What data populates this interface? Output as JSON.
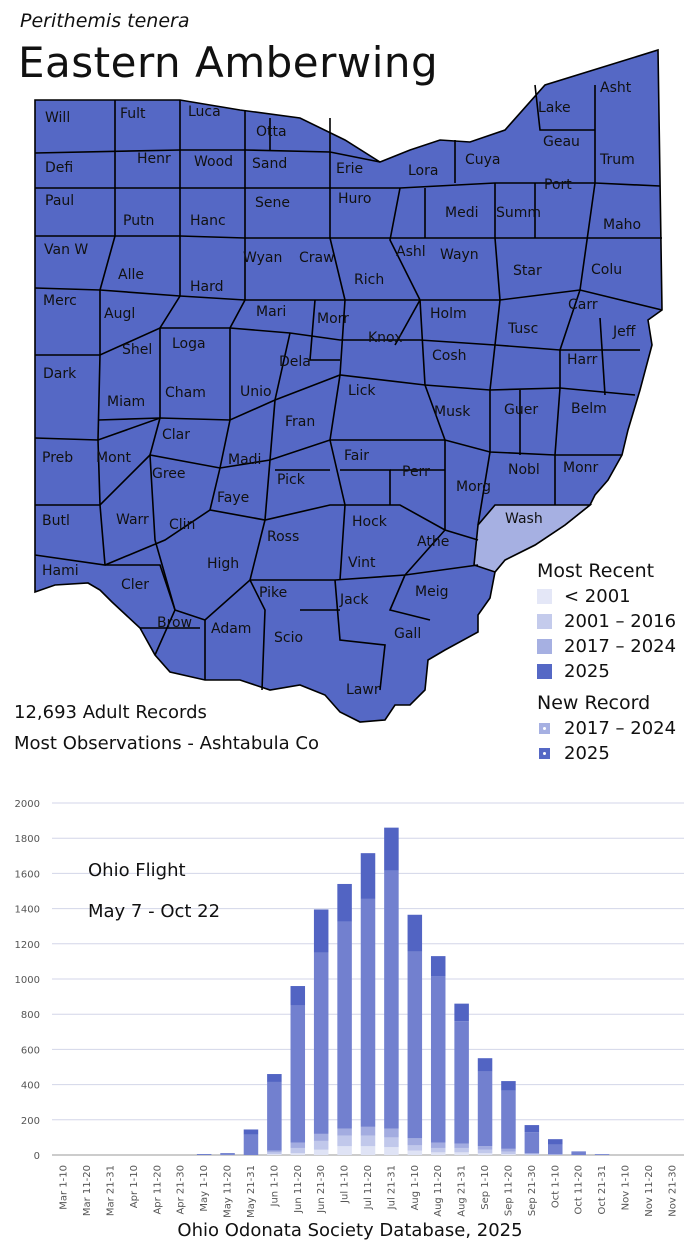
{
  "species": {
    "scientific_name": "Perithemis tenera",
    "common_name": "Eastern Amberwing"
  },
  "map": {
    "counties": [
      "Will",
      "Fult",
      "Luca",
      "Otta",
      "Lake",
      "Asht",
      "Defi",
      "Henr",
      "Wood",
      "Sand",
      "Erie",
      "Lora",
      "Cuya",
      "Geau",
      "Trum",
      "Paul",
      "Putn",
      "Hanc",
      "Sene",
      "Huro",
      "Medi",
      "Summ",
      "Port",
      "Maho",
      "Van W",
      "Alle",
      "Wyan",
      "Craw",
      "Rich",
      "Ashl",
      "Wayn",
      "Star",
      "Colu",
      "Merc",
      "Augl",
      "Hard",
      "Mari",
      "Morr",
      "Holm",
      "Carr",
      "Shel",
      "Loga",
      "Knox",
      "Tusc",
      "Jeff",
      "Dela",
      "Cosh",
      "Harr",
      "Dark",
      "Cham",
      "Unio",
      "Lick",
      "Miam",
      "Fran",
      "Musk",
      "Guer",
      "Belm",
      "Clar",
      "Fair",
      "Madi",
      "Perr",
      "Nobl",
      "Monr",
      "Preb",
      "Mont",
      "Gree",
      "Pick",
      "Morg",
      "Wash",
      "Faye",
      "Hock",
      "Butl",
      "Warr",
      "Clin",
      "Ross",
      "Athe",
      "High",
      "Vint",
      "Hami",
      "Cler",
      "Pike",
      "Jack",
      "Meig",
      "Brow",
      "Adam",
      "Scio",
      "Gall",
      "Lawr"
    ],
    "most_recent_category": {
      "default": "2025",
      "Wash": "2017 – 2024"
    }
  },
  "legend": {
    "most_recent_title": "Most Recent",
    "most_recent_items": [
      {
        "label": "< 2001",
        "color": "#e4e7f7"
      },
      {
        "label": "2001 – 2016",
        "color": "#c4cbec"
      },
      {
        "label": "2017 – 2024",
        "color": "#a6b0e2"
      },
      {
        "label": "2025",
        "color": "#5568c5"
      }
    ],
    "new_record_title": "New Record",
    "new_record_items": [
      {
        "label": "2017 – 2024",
        "color": "#a6b0e2"
      },
      {
        "label": "2025",
        "color": "#5568c5"
      }
    ]
  },
  "stats": {
    "records": "12,693 Adult Records",
    "most_observations": "Most Observations - Ashtabula Co"
  },
  "chart_data": {
    "type": "bar",
    "stacked": true,
    "annotation_title": "Ohio Flight",
    "annotation_range": "May 7 - Oct 22",
    "categories": [
      "Mar 1-10",
      "Mar 11-20",
      "Mar 21-31",
      "Apr 1-10",
      "Apr 11-20",
      "Apr 21-30",
      "May 1-10",
      "May 11-20",
      "May 21-31",
      "Jun 1-10",
      "Jun 11-20",
      "Jun 21-30",
      "Jul 1-10",
      "Jul 11-20",
      "Jul 21-31",
      "Aug 1-10",
      "Aug 11-20",
      "Aug 21-31",
      "Sep 1-10",
      "Sep 11-20",
      "Sep 21-30",
      "Oct 1-10",
      "Oct 11-20",
      "Oct 21-31",
      "Nov 1-10",
      "Nov 11-20",
      "Nov 21-30"
    ],
    "series": [
      {
        "color": "#dfe3f5",
        "values": [
          0,
          0,
          0,
          0,
          0,
          0,
          0,
          0,
          0,
          5,
          10,
          30,
          50,
          50,
          45,
          25,
          15,
          15,
          10,
          5,
          0,
          0,
          0,
          0,
          0,
          0,
          0
        ]
      },
      {
        "color": "#c1c8eb",
        "values": [
          0,
          0,
          0,
          0,
          0,
          0,
          0,
          0,
          0,
          10,
          30,
          50,
          60,
          60,
          55,
          30,
          25,
          25,
          20,
          15,
          5,
          0,
          0,
          0,
          0,
          0,
          0
        ]
      },
      {
        "color": "#a3ace0",
        "values": [
          0,
          0,
          0,
          0,
          0,
          0,
          0,
          0,
          0,
          10,
          30,
          40,
          40,
          50,
          50,
          40,
          30,
          25,
          20,
          15,
          5,
          5,
          0,
          0,
          0,
          0,
          0
        ]
      },
      {
        "color": "#7280cf",
        "values": [
          0,
          0,
          0,
          0,
          0,
          0,
          3,
          5,
          115,
          390,
          780,
          1030,
          1175,
          1295,
          1465,
          1060,
          945,
          695,
          425,
          330,
          120,
          55,
          15,
          5,
          0,
          0,
          0
        ]
      },
      {
        "color": "#5264c3",
        "values": [
          0,
          0,
          0,
          0,
          0,
          0,
          2,
          5,
          30,
          45,
          110,
          245,
          215,
          260,
          245,
          210,
          115,
          100,
          75,
          55,
          40,
          30,
          5,
          0,
          0,
          0,
          0
        ]
      }
    ],
    "ylim": [
      0,
      2000
    ],
    "yticks": [
      0,
      200,
      400,
      600,
      800,
      1000,
      1200,
      1400,
      1600,
      1800,
      2000
    ],
    "grid": true
  },
  "footer": "Ohio Odonata Society Database, 2025"
}
